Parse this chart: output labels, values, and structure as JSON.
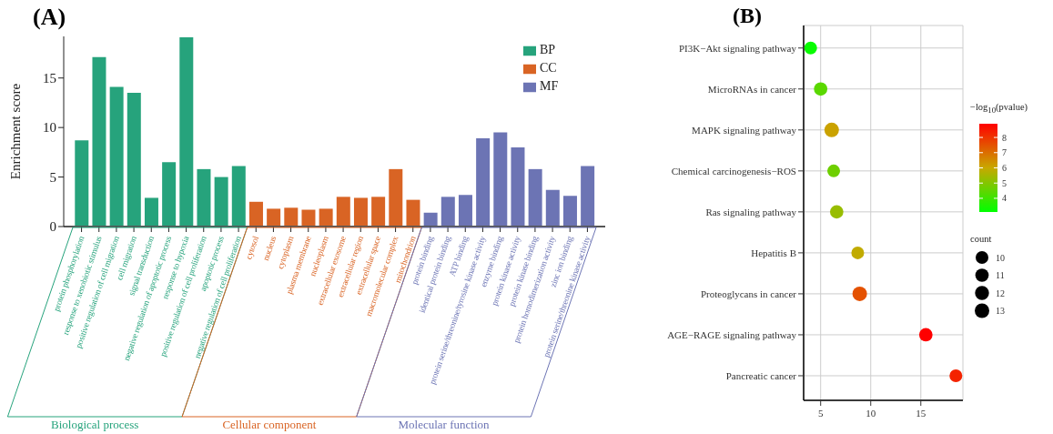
{
  "chart_data": [
    {
      "type": "bar",
      "title": "(A)",
      "ylabel": "Enrichment score",
      "categories": [
        "protein phosphorylation",
        "response to xenobiotic stimulus",
        "positive regulation of cell migration",
        "cell migration",
        "signal transduction",
        "negative regulation of apoptotic process",
        "response to hypoxia",
        "positive regulation of cell proliferation",
        "apoptotic process",
        "negative regulation of cell proliferation",
        "cytosol",
        "nucleus",
        "cytoplasm",
        "plasma membrane",
        "nucleoplasm",
        "extracellular exosome",
        "extracellular region",
        "extracellular space",
        "macromolecular complex",
        "mitochondrion",
        "protein binding",
        "identical protein binding",
        "ATP binding",
        "protein serine/threonine/tyrosine kinase activity",
        "enzyme binding",
        "protein kinase activity",
        "protein kinase binding",
        "protein homodimerization activity",
        "zinc ion binding",
        "protein serine/threonine kinase activity"
      ],
      "series": [
        {
          "name": "BP",
          "color": "#26a37c",
          "values": [
            8.7,
            17.1,
            14.1,
            13.5,
            2.9,
            6.5,
            19.1,
            5.8,
            5.0,
            6.1,
            null,
            null,
            null,
            null,
            null,
            null,
            null,
            null,
            null,
            null,
            null,
            null,
            null,
            null,
            null,
            null,
            null,
            null,
            null,
            null
          ]
        },
        {
          "name": "CC",
          "color": "#d96424",
          "values": [
            null,
            null,
            null,
            null,
            null,
            null,
            null,
            null,
            null,
            null,
            2.5,
            1.8,
            1.9,
            1.7,
            1.8,
            3.0,
            2.9,
            3.0,
            5.8,
            2.7,
            null,
            null,
            null,
            null,
            null,
            null,
            null,
            null,
            null,
            null
          ]
        },
        {
          "name": "MF",
          "color": "#6c74b4",
          "values": [
            null,
            null,
            null,
            null,
            null,
            null,
            null,
            null,
            null,
            null,
            null,
            null,
            null,
            null,
            null,
            null,
            null,
            null,
            null,
            null,
            1.4,
            3.0,
            3.2,
            8.9,
            9.5,
            8.0,
            5.8,
            3.7,
            3.1,
            6.1
          ]
        }
      ],
      "ylim": [
        0,
        19.2
      ],
      "yticks": [
        0,
        5,
        10,
        15
      ],
      "legend": "top right",
      "annotations": [
        "Biological process",
        "Cellular component",
        "Molecular function"
      ]
    },
    {
      "type": "bubble",
      "title": "(B)",
      "orientation": "horizontal",
      "categories": [
        "PI3K−Akt signaling pathway",
        "MicroRNAs in cancer",
        "MAPK signaling pathway",
        "Chemical carcinogenesis−ROS",
        "Ras signaling pathway",
        "Hepatitis B",
        "Proteoglycans in cancer",
        "AGE−RAGE signaling pathway",
        "Pancreatic cancer"
      ],
      "values": [
        4.0,
        5.0,
        6.1,
        6.3,
        6.6,
        8.7,
        8.9,
        15.5,
        18.5
      ],
      "sizes": [
        10,
        11,
        13,
        10,
        11,
        10,
        13,
        11,
        10
      ],
      "cvalues": [
        3.2,
        4.4,
        6.1,
        4.7,
        5.3,
        5.9,
        7.5,
        8.9,
        8.3
      ],
      "clabel": "−log$_{10}$(pvalue)",
      "clim": [
        3.1,
        8.9
      ],
      "cticks": [
        4,
        5,
        6,
        7,
        8
      ],
      "legend_title": "count",
      "size_legend": [
        10,
        11,
        12,
        13
      ],
      "xlim": [
        3.3,
        19.2
      ],
      "xticks": [
        5,
        10,
        15
      ],
      "grid": true
    }
  ]
}
